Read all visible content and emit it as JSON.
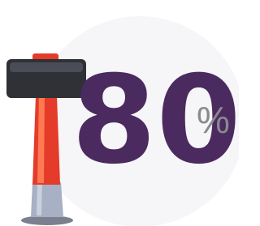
{
  "stat": {
    "number": "80",
    "unit": "%"
  }
}
